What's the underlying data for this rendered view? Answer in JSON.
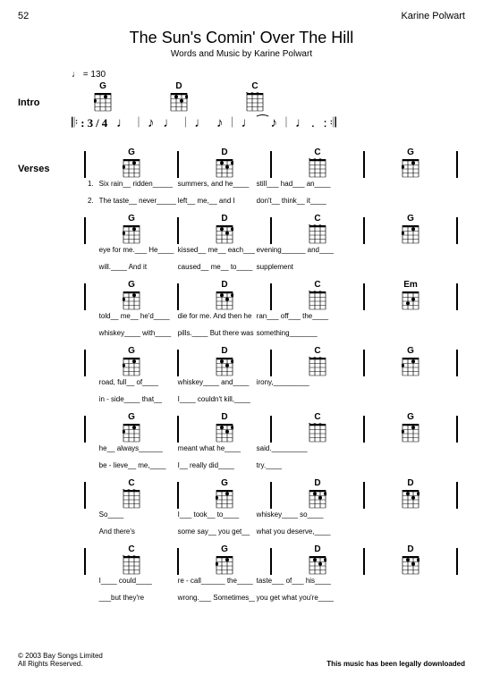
{
  "page_number": "52",
  "artist": "Karine Polwart",
  "title": "The Sun's Comin' Over The Hill",
  "subtitle": "Words and Music by Karine Polwart",
  "tempo": "♩ = 130",
  "intro_label": "Intro",
  "verses_label": "Verses",
  "time_sig": "3/4",
  "chords": {
    "G": {
      "name": "G",
      "dots": [
        [
          0,
          2
        ],
        [
          1,
          0
        ],
        [
          2,
          1
        ]
      ]
    },
    "D": {
      "name": "D",
      "dots": [
        [
          1,
          1
        ],
        [
          2,
          2
        ],
        [
          3,
          1
        ]
      ]
    },
    "C": {
      "name": "C",
      "dots": [
        [
          0,
          0
        ],
        [
          1,
          0
        ],
        [
          2,
          0
        ]
      ],
      "open": [
        0,
        1,
        2
      ]
    },
    "Em": {
      "name": "Em",
      "dots": [
        [
          0,
          0
        ],
        [
          1,
          3
        ],
        [
          2,
          2
        ]
      ]
    }
  },
  "intro_chords": [
    "G",
    "D",
    "C"
  ],
  "rows": [
    {
      "chords": [
        "G",
        "D",
        "C",
        "G"
      ],
      "lyrics": [
        {
          "num": "1.",
          "cells": [
            "Six   rain__  ridden_____",
            "summers,  and  he____",
            "still___   had___   an____",
            ""
          ]
        },
        {
          "num": "2.",
          "cells": [
            "The   taste__  never_____",
            "left__  me,__  and  I",
            "don't__  think__  it____",
            ""
          ]
        }
      ]
    },
    {
      "chords": [
        "G",
        "D",
        "C",
        "G"
      ],
      "lyrics": [
        {
          "num": "",
          "cells": [
            "eye  for  me.___  He____",
            "kissed__  me__  each____",
            "evening______  and____",
            ""
          ]
        },
        {
          "num": "",
          "cells": [
            "will.____      And  it",
            "caused__  me__  to____",
            "supplement",
            ""
          ]
        }
      ]
    },
    {
      "chords": [
        "G",
        "D",
        "C",
        "Em"
      ],
      "lyrics": [
        {
          "num": "",
          "cells": [
            "told__  me__  he'd____",
            "die  for  me. And then  he",
            "ran___  off___  the____",
            ""
          ]
        },
        {
          "num": "",
          "cells": [
            "whiskey____  with____",
            "pills.____  But there was",
            "something_______",
            ""
          ]
        }
      ]
    },
    {
      "chords": [
        "G",
        "D",
        "C",
        "G"
      ],
      "lyrics": [
        {
          "num": "",
          "cells": [
            "road,   full__  of____",
            "whiskey____  and____",
            "irony,_________",
            ""
          ]
        },
        {
          "num": "",
          "cells": [
            "in - side____  that__",
            "I____  couldn't  kill,____",
            "",
            ""
          ]
        }
      ]
    },
    {
      "chords": [
        "G",
        "D",
        "C",
        "G"
      ],
      "lyrics": [
        {
          "num": "",
          "cells": [
            "he__  always______",
            "meant  what  he____",
            "said._________",
            ""
          ]
        },
        {
          "num": "",
          "cells": [
            "be - lieve__  me,____",
            "I__  really  did____",
            "try.____",
            ""
          ]
        }
      ]
    },
    {
      "chords": [
        "C",
        "G",
        "D",
        "D"
      ],
      "lyrics": [
        {
          "num": "",
          "cells": [
            "      So____",
            "I___  took__  to____",
            "whiskey____  so____",
            ""
          ]
        },
        {
          "num": "",
          "cells": [
            "   And   there's",
            "some  say__  you  get__",
            "what  you  deserve,____",
            ""
          ]
        }
      ]
    },
    {
      "chords": [
        "C",
        "G",
        "D",
        "D"
      ],
      "lyrics": [
        {
          "num": "",
          "cells": [
            "I____  could____",
            "re  -  call______  the____",
            "taste___  of___  his____",
            ""
          ]
        },
        {
          "num": "",
          "cells": [
            "___but   they're",
            "wrong.___  Sometimes___",
            "you  get  what  you're____",
            ""
          ]
        }
      ]
    }
  ],
  "copyright": "© 2003 Bay Songs Limited",
  "rights": "All Rights Reserved.",
  "footer_right": "This music has been legally downloaded"
}
